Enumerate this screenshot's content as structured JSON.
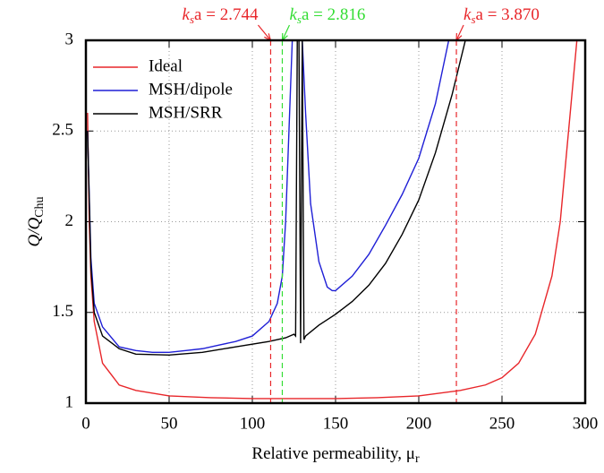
{
  "chart_data": {
    "type": "line",
    "x_label": [
      "Relative permeability, μ",
      "r"
    ],
    "y_label": [
      "Q/Q",
      "Chu"
    ],
    "xlim": [
      0,
      300
    ],
    "ylim": [
      1,
      3
    ],
    "xticks": [
      0,
      50,
      100,
      150,
      200,
      250,
      300
    ],
    "yticks": [
      1,
      1.5,
      2,
      2.5,
      3
    ],
    "grid": true,
    "legend": "top-left",
    "series": [
      {
        "name": "Ideal",
        "color": "#e8262a",
        "x": [
          1,
          2,
          3,
          5,
          10,
          20,
          30,
          50,
          75,
          100,
          125,
          150,
          175,
          200,
          225,
          240,
          250,
          260,
          270,
          280,
          285,
          290,
          295
        ],
        "values": [
          2.6,
          2.0,
          1.7,
          1.45,
          1.22,
          1.1,
          1.07,
          1.04,
          1.03,
          1.025,
          1.025,
          1.025,
          1.03,
          1.04,
          1.07,
          1.1,
          1.14,
          1.22,
          1.38,
          1.7,
          2.0,
          2.5,
          3.0
        ]
      },
      {
        "name": "MSH/dipole",
        "color": "#1f1fd6",
        "x": [
          1,
          3,
          5,
          10,
          20,
          30,
          40,
          50,
          60,
          70,
          80,
          90,
          100,
          110,
          115,
          118,
          120,
          122,
          124,
          130,
          132,
          135,
          140,
          145,
          148,
          150,
          160,
          170,
          180,
          190,
          200,
          210,
          218
        ],
        "values": [
          2.5,
          1.8,
          1.55,
          1.42,
          1.31,
          1.29,
          1.28,
          1.28,
          1.29,
          1.3,
          1.32,
          1.34,
          1.37,
          1.45,
          1.55,
          1.7,
          2.0,
          2.5,
          3.0,
          3.0,
          2.6,
          2.1,
          1.78,
          1.64,
          1.62,
          1.62,
          1.7,
          1.82,
          1.98,
          2.15,
          2.35,
          2.65,
          3.0
        ]
      },
      {
        "name": "MSH/SRR",
        "color": "#000000",
        "x": [
          1,
          3,
          5,
          10,
          20,
          30,
          50,
          70,
          90,
          110,
          120,
          125,
          126,
          127,
          128,
          129,
          130,
          131,
          132,
          140,
          150,
          160,
          170,
          180,
          190,
          200,
          210,
          220,
          228
        ],
        "values": [
          2.5,
          1.75,
          1.5,
          1.37,
          1.3,
          1.27,
          1.265,
          1.28,
          1.31,
          1.34,
          1.36,
          1.38,
          1.37,
          3.0,
          3.0,
          1.33,
          3.0,
          1.35,
          1.37,
          1.43,
          1.49,
          1.56,
          1.65,
          1.77,
          1.93,
          2.12,
          2.38,
          2.7,
          3.0
        ]
      }
    ],
    "vlines": [
      {
        "x": 111,
        "color": "#e8262a",
        "label": [
          "k",
          "s",
          "a = 2.744"
        ]
      },
      {
        "x": 118,
        "color": "#33dd33",
        "label": [
          "k",
          "s",
          "a = 2.816"
        ]
      },
      {
        "x": 222.6,
        "color": "#e8262a",
        "label": [
          "k",
          "s",
          "a = 3.870"
        ]
      }
    ]
  }
}
